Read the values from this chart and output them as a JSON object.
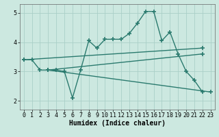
{
  "bg_color": "#cce8e0",
  "grid_color": "#aacfc8",
  "line_color": "#2a7a6e",
  "line_width": 1.0,
  "marker": "+",
  "markersize": 4,
  "markeredgewidth": 1.2,
  "xlabel": "Humidex (Indice chaleur)",
  "xlabel_fontsize": 7,
  "tick_fontsize": 6,
  "ylim": [
    1.7,
    5.3
  ],
  "xlim": [
    -0.5,
    23.5
  ],
  "yticks": [
    2,
    3,
    4,
    5
  ],
  "xticks": [
    0,
    1,
    2,
    3,
    4,
    5,
    6,
    7,
    8,
    9,
    10,
    11,
    12,
    13,
    14,
    15,
    16,
    17,
    18,
    19,
    20,
    21,
    22,
    23
  ],
  "lines": [
    {
      "x": [
        0,
        1,
        2,
        3,
        4,
        5,
        6,
        7,
        8,
        9,
        10,
        11,
        12,
        13,
        14,
        15,
        16,
        17,
        18,
        19,
        20,
        21,
        22
      ],
      "y": [
        3.4,
        3.4,
        3.05,
        3.05,
        3.05,
        3.0,
        2.1,
        3.05,
        4.05,
        3.8,
        4.1,
        4.1,
        4.1,
        4.3,
        4.65,
        5.05,
        5.05,
        4.05,
        4.35,
        3.6,
        3.0,
        2.7,
        2.3
      ]
    },
    {
      "x": [
        0,
        22
      ],
      "y": [
        3.4,
        3.8
      ]
    },
    {
      "x": [
        3,
        22
      ],
      "y": [
        3.05,
        3.6
      ]
    },
    {
      "x": [
        3,
        23
      ],
      "y": [
        3.05,
        2.3
      ]
    }
  ]
}
